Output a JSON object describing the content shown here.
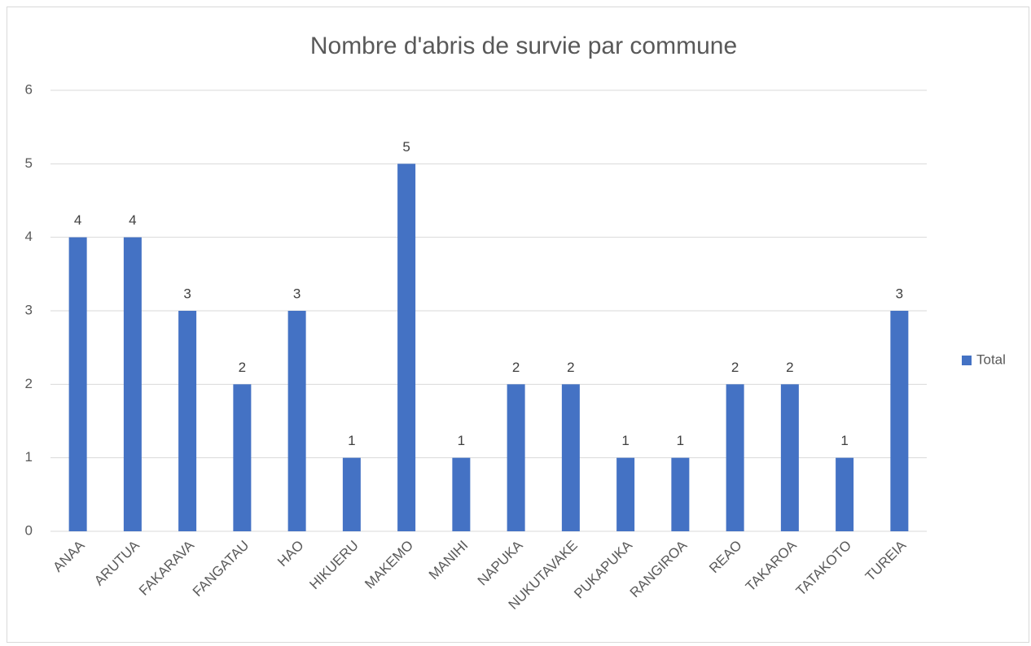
{
  "chart_data": {
    "type": "bar",
    "title": "Nombre d'abris de survie par commune",
    "categories": [
      "ANAA",
      "ARUTUA",
      "FAKARAVA",
      "FANGATAU",
      "HAO",
      "HIKUERU",
      "MAKEMO",
      "MANIHI",
      "NAPUKA",
      "NUKUTAVAKE",
      "PUKAPUKA",
      "RANGIROA",
      "REAO",
      "TAKAROA",
      "TATAKOTO",
      "TUREIA"
    ],
    "series": [
      {
        "name": "Total",
        "color": "#4472c4",
        "values": [
          4,
          4,
          3,
          2,
          3,
          1,
          5,
          1,
          2,
          2,
          1,
          1,
          2,
          2,
          1,
          3
        ]
      }
    ],
    "ylim": [
      0,
      6
    ],
    "yticks": [
      0,
      1,
      2,
      3,
      4,
      5,
      6
    ],
    "grid": true,
    "data_labels": true,
    "legend": "right"
  }
}
